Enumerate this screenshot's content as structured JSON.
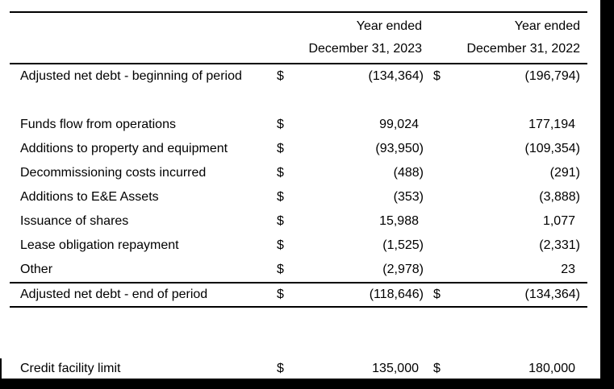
{
  "header": {
    "col1": {
      "line1": "Year ended",
      "line2": "December 31, 2023"
    },
    "col2": {
      "line1": "Year ended",
      "line2": "December 31, 2022"
    }
  },
  "rows": [
    {
      "label": "Adjusted net debt - beginning of period",
      "cur1": "$",
      "val1": "(134,364)",
      "cur2": "$",
      "val2": "(196,794)",
      "spacer_after": true
    },
    {
      "label": "Funds flow from operations",
      "cur1": "$",
      "val1": "99,024",
      "cur2": "",
      "val2": "177,194"
    },
    {
      "label": "Additions to property and equipment",
      "cur1": "$",
      "val1": "(93,950)",
      "cur2": "",
      "val2": "(109,354)"
    },
    {
      "label": "Decommissioning costs incurred",
      "cur1": "$",
      "val1": "(488)",
      "cur2": "",
      "val2": "(291)"
    },
    {
      "label": "Additions to E&E Assets",
      "cur1": "$",
      "val1": "(353)",
      "cur2": "",
      "val2": "(3,888)"
    },
    {
      "label": "Issuance of shares",
      "cur1": "$",
      "val1": "15,988",
      "cur2": "",
      "val2": "1,077"
    },
    {
      "label": "Lease obligation repayment",
      "cur1": "$",
      "val1": "(1,525)",
      "cur2": "",
      "val2": "(2,331)"
    },
    {
      "label": "Other",
      "cur1": "$",
      "val1": "(2,978)",
      "cur2": "",
      "val2": "23"
    },
    {
      "label": "Adjusted net debt - end of period",
      "cur1": "$",
      "val1": "(118,646)",
      "cur2": "$",
      "val2": "(134,364)",
      "rule_above": true,
      "rule_below": true
    },
    {
      "label": "Credit facility limit",
      "cur1": "$",
      "val1": "135,000",
      "cur2": "$",
      "val2": "180,000",
      "gap_before": true
    }
  ],
  "colors": {
    "text": "#000000",
    "rule": "#000000",
    "frame": "#000000",
    "background": "#ffffff"
  }
}
